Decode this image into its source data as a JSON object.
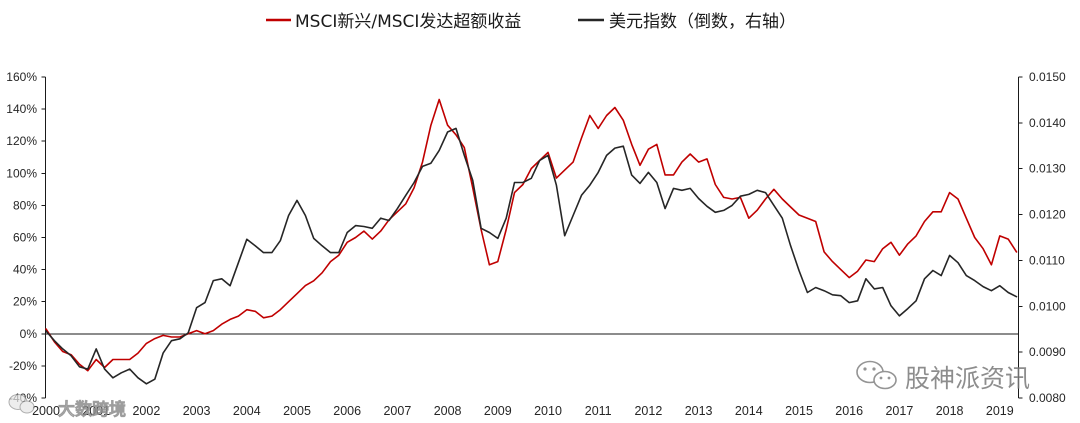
{
  "chart_data": {
    "type": "line",
    "legend": "top",
    "grid": false,
    "dual_axis": true,
    "xticks": [
      "2000",
      "2001",
      "2002",
      "2003",
      "2004",
      "2005",
      "2006",
      "2007",
      "2008",
      "2009",
      "2010",
      "2011",
      "2012",
      "2013",
      "2014",
      "2015",
      "2016",
      "2017",
      "2018",
      "2019"
    ],
    "y_left": {
      "ticks": [
        "160%",
        "140%",
        "120%",
        "100%",
        "80%",
        "60%",
        "40%",
        "20%",
        "0%",
        "-20%",
        "-40%"
      ],
      "lim": [
        -40,
        160
      ]
    },
    "y_right": {
      "ticks": [
        "0.0150",
        "0.0140",
        "0.0130",
        "0.0120",
        "0.0110",
        "0.0100",
        "0.0090",
        "0.0080"
      ],
      "lim": [
        0.008,
        0.015
      ]
    },
    "x": [
      "2000-01",
      "2000-03",
      "2000-05",
      "2000-07",
      "2000-09",
      "2000-11",
      "2001-01",
      "2001-03",
      "2001-05",
      "2001-07",
      "2001-09",
      "2001-11",
      "2002-01",
      "2002-03",
      "2002-05",
      "2002-07",
      "2002-09",
      "2002-11",
      "2003-01",
      "2003-03",
      "2003-05",
      "2003-07",
      "2003-09",
      "2003-11",
      "2004-01",
      "2004-03",
      "2004-05",
      "2004-07",
      "2004-09",
      "2004-11",
      "2005-01",
      "2005-03",
      "2005-05",
      "2005-07",
      "2005-09",
      "2005-11",
      "2006-01",
      "2006-03",
      "2006-05",
      "2006-07",
      "2006-09",
      "2006-11",
      "2007-01",
      "2007-03",
      "2007-05",
      "2007-07",
      "2007-09",
      "2007-11",
      "2008-01",
      "2008-03",
      "2008-05",
      "2008-07",
      "2008-09",
      "2008-11",
      "2009-01",
      "2009-03",
      "2009-05",
      "2009-07",
      "2009-09",
      "2009-11",
      "2010-01",
      "2010-03",
      "2010-05",
      "2010-07",
      "2010-09",
      "2010-11",
      "2011-01",
      "2011-03",
      "2011-05",
      "2011-07",
      "2011-09",
      "2011-11",
      "2012-01",
      "2012-03",
      "2012-05",
      "2012-07",
      "2012-09",
      "2012-11",
      "2013-01",
      "2013-03",
      "2013-05",
      "2013-07",
      "2013-09",
      "2013-11",
      "2014-01",
      "2014-03",
      "2014-05",
      "2014-07",
      "2014-09",
      "2014-11",
      "2015-01",
      "2015-03",
      "2015-05",
      "2015-07",
      "2015-09",
      "2015-11",
      "2016-01",
      "2016-03",
      "2016-05",
      "2016-07",
      "2016-09",
      "2016-11",
      "2017-01",
      "2017-03",
      "2017-05",
      "2017-07",
      "2017-09",
      "2017-11",
      "2018-01",
      "2018-03",
      "2018-05",
      "2018-07",
      "2018-09",
      "2018-11",
      "2019-01",
      "2019-03",
      "2019-05"
    ],
    "series": [
      {
        "name": "MSCI新兴/MSCI发达超额收益",
        "axis": "left",
        "color": "#c00000",
        "values": [
          3,
          -5,
          -11,
          -13,
          -19,
          -23,
          -16,
          -21,
          -16,
          -16,
          -16,
          -12,
          -6,
          -3,
          -1,
          -2,
          -2,
          0,
          2,
          0,
          2,
          6,
          9,
          11,
          15,
          14,
          10,
          11,
          15,
          20,
          25,
          30,
          33,
          38,
          45,
          49,
          57,
          60,
          64,
          59,
          64,
          71,
          76,
          81,
          91,
          107,
          130,
          146,
          130,
          124,
          116,
          91,
          65,
          43,
          45,
          65,
          88,
          93,
          103,
          108,
          113,
          97,
          102,
          107,
          122,
          136,
          128,
          136,
          141,
          133,
          118,
          105,
          115,
          118,
          99,
          99,
          107,
          112,
          107,
          109,
          93,
          85,
          84,
          85,
          72,
          77,
          84,
          90,
          84,
          79,
          74,
          72,
          70,
          51,
          45,
          40,
          35,
          39,
          46,
          45,
          53,
          57,
          49,
          56,
          61,
          70,
          76,
          76,
          88,
          84,
          72,
          60,
          53,
          43,
          61,
          59,
          51
        ]
      },
      {
        "name": "美元指数（倒数，右轴）",
        "axis": "right",
        "color": "#262626",
        "values": [
          0.00946,
          0.00925,
          0.00907,
          0.00892,
          0.00868,
          0.00863,
          0.00907,
          0.00863,
          0.00844,
          0.00855,
          0.00863,
          0.00844,
          0.00831,
          0.00841,
          0.00898,
          0.00925,
          0.00929,
          0.00942,
          0.00997,
          0.01008,
          0.01056,
          0.0106,
          0.01045,
          0.01095,
          0.01146,
          0.01132,
          0.01117,
          0.01117,
          0.01143,
          0.01198,
          0.01231,
          0.01198,
          0.01148,
          0.01132,
          0.01117,
          0.01117,
          0.01161,
          0.01176,
          0.01174,
          0.0117,
          0.01192,
          0.01187,
          0.01213,
          0.01242,
          0.0127,
          0.01305,
          0.01312,
          0.0134,
          0.0138,
          0.01388,
          0.01329,
          0.01275,
          0.0117,
          0.01161,
          0.01148,
          0.01192,
          0.0127,
          0.0127,
          0.01279,
          0.01318,
          0.01329,
          0.01264,
          0.01154,
          0.01198,
          0.01242,
          0.01264,
          0.01292,
          0.01329,
          0.01345,
          0.01349,
          0.01286,
          0.01268,
          0.01292,
          0.0127,
          0.01213,
          0.01257,
          0.01253,
          0.01257,
          0.01235,
          0.01218,
          0.01205,
          0.01209,
          0.0122,
          0.0124,
          0.01244,
          0.01253,
          0.01248,
          0.0122,
          0.01192,
          0.01132,
          0.01078,
          0.0103,
          0.01041,
          0.01034,
          0.01025,
          0.01023,
          0.01008,
          0.01012,
          0.0106,
          0.01038,
          0.01041,
          0.01001,
          0.00979,
          0.00995,
          0.01012,
          0.0106,
          0.01078,
          0.01067,
          0.01111,
          0.01095,
          0.01067,
          0.01056,
          0.01043,
          0.01034,
          0.01045,
          0.0103,
          0.01021
        ]
      }
    ]
  },
  "watermarks": {
    "bottom_left": "大数跨境",
    "bottom_right": "股神派资讯",
    "icon": "wechat-icon"
  }
}
